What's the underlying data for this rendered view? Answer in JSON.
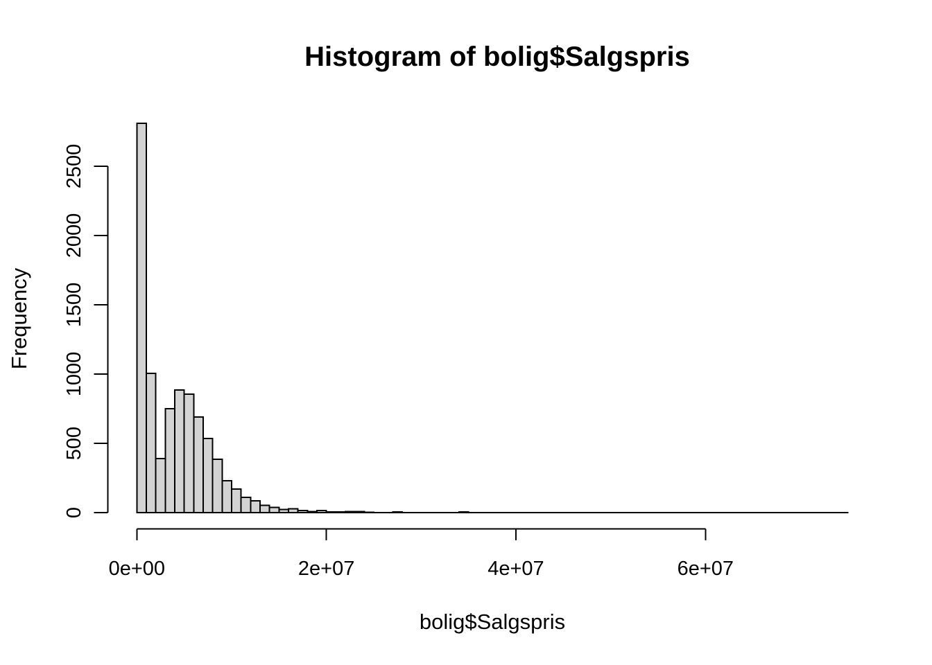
{
  "figure": {
    "background_color": "#ffffff",
    "bar_fill_color": "#d3d3d3",
    "bar_stroke_color": "#000000"
  },
  "chart_data": {
    "type": "bar",
    "subtype": "histogram",
    "title": "Histogram of bolig$Salgspris",
    "xlabel": "bolig$Salgspris",
    "ylabel": "Frequency",
    "grid": "off",
    "legend": "none",
    "xlim": [
      0,
      75000000
    ],
    "ylim": [
      0,
      2810
    ],
    "bin_start": 0,
    "bin_width": 1000000,
    "x_ticks": [
      {
        "value": 0,
        "label": "0e+00"
      },
      {
        "value": 20000000,
        "label": "2e+07"
      },
      {
        "value": 40000000,
        "label": "4e+07"
      },
      {
        "value": 60000000,
        "label": "6e+07"
      }
    ],
    "y_ticks": [
      {
        "value": 0,
        "label": "0"
      },
      {
        "value": 500,
        "label": "500"
      },
      {
        "value": 1000,
        "label": "1000"
      },
      {
        "value": 1500,
        "label": "1500"
      },
      {
        "value": 2000,
        "label": "2000"
      },
      {
        "value": 2500,
        "label": "2500"
      }
    ],
    "counts": [
      2810,
      1005,
      390,
      750,
      885,
      855,
      690,
      535,
      385,
      230,
      170,
      110,
      85,
      53,
      37,
      22,
      28,
      15,
      8,
      14,
      6,
      4,
      7,
      7,
      2,
      1,
      1,
      5,
      1,
      1,
      1,
      1,
      1,
      1,
      4,
      1,
      0,
      0,
      0,
      0,
      0,
      0,
      0,
      0,
      0,
      0,
      0,
      0,
      0,
      0,
      0,
      0,
      0,
      0,
      0,
      0,
      0,
      0,
      0,
      0,
      0,
      0,
      0,
      0,
      0,
      0,
      0,
      0,
      0,
      0,
      0,
      0,
      0,
      0,
      1
    ]
  }
}
